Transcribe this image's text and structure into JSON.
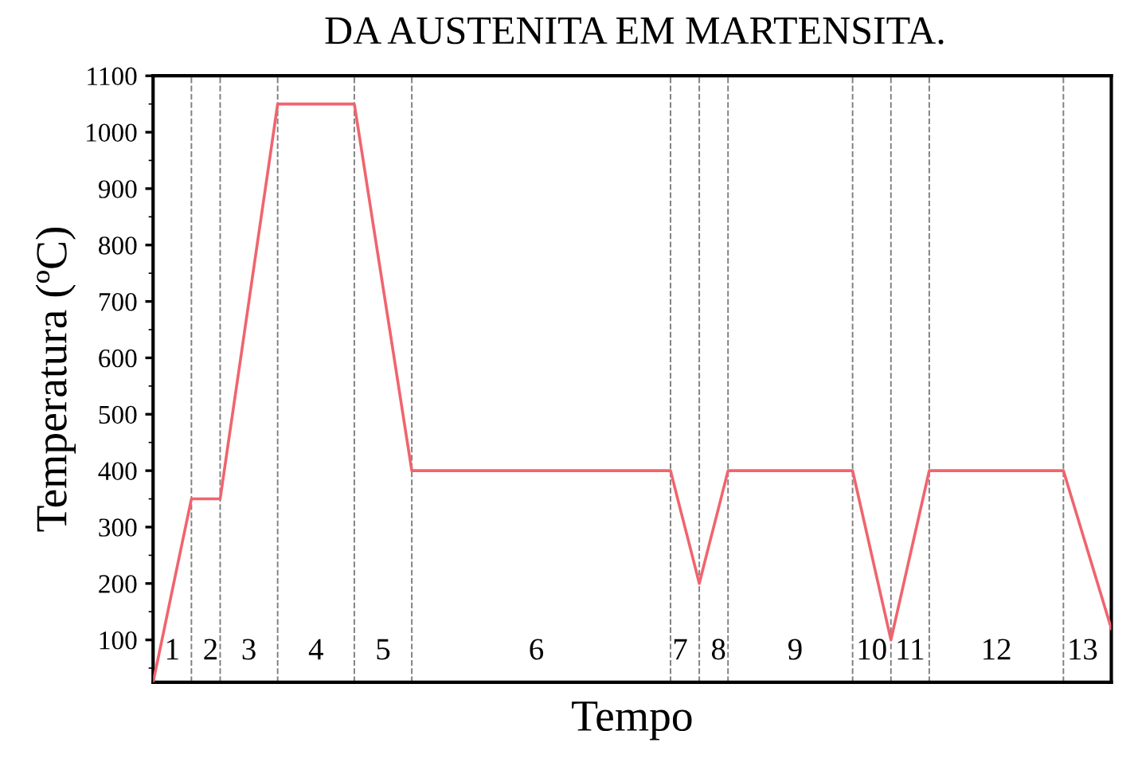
{
  "chart_data": {
    "type": "line",
    "title": "DA AUSTENITA EM MARTENSITA.",
    "xlabel": "Tempo",
    "ylabel": "Temperatura (ºC)",
    "categories": [
      null,
      null,
      "1",
      null,
      null,
      null,
      "2",
      null,
      null,
      null,
      "3",
      null,
      null,
      null,
      null,
      null,
      null,
      "4",
      null,
      null,
      null,
      null,
      null,
      null,
      "5",
      null,
      null,
      null,
      null,
      null,
      null,
      null,
      null,
      null,
      null,
      null,
      null,
      null,
      null,
      null,
      "6",
      null,
      null,
      null,
      null,
      null,
      null,
      null,
      null,
      null,
      null,
      null,
      null,
      null,
      null,
      "7",
      null,
      null,
      null,
      "8",
      null,
      null,
      null,
      null,
      null,
      null,
      null,
      "9",
      null,
      null,
      null,
      null,
      null,
      null,
      null,
      "10",
      null,
      null,
      null,
      "11",
      null,
      null,
      null,
      null,
      null,
      null,
      null,
      null,
      "12",
      null,
      null,
      null,
      null,
      null,
      null,
      null,
      null,
      "13",
      null,
      null,
      null
    ],
    "series": [
      {
        "color": "#f0646e",
        "values": [
          25,
          106,
          188,
          269,
          350,
          350,
          350,
          350,
          467,
          583,
          700,
          817,
          933,
          1050,
          1050,
          1050,
          1050,
          1050,
          1050,
          1050,
          1050,
          1050,
          942,
          833,
          725,
          617,
          508,
          400,
          400,
          400,
          400,
          400,
          400,
          400,
          400,
          400,
          400,
          400,
          400,
          400,
          400,
          400,
          400,
          400,
          400,
          400,
          400,
          400,
          400,
          400,
          400,
          400,
          400,
          400,
          400,
          333,
          267,
          200,
          267,
          333,
          400,
          400,
          400,
          400,
          400,
          400,
          400,
          400,
          400,
          400,
          400,
          400,
          400,
          400,
          325,
          250,
          175,
          100,
          175,
          250,
          325,
          400,
          400,
          400,
          400,
          400,
          400,
          400,
          400,
          400,
          400,
          400,
          400,
          400,
          400,
          400,
          344,
          288,
          232,
          176,
          120
        ]
      }
    ],
    "ylim": [
      25,
      1100
    ],
    "yticks": [
      100,
      200,
      300,
      400,
      500,
      600,
      700,
      800,
      900,
      1000,
      1100
    ],
    "grid": false,
    "legend": false,
    "marker": "none",
    "line_style": "solid"
  }
}
